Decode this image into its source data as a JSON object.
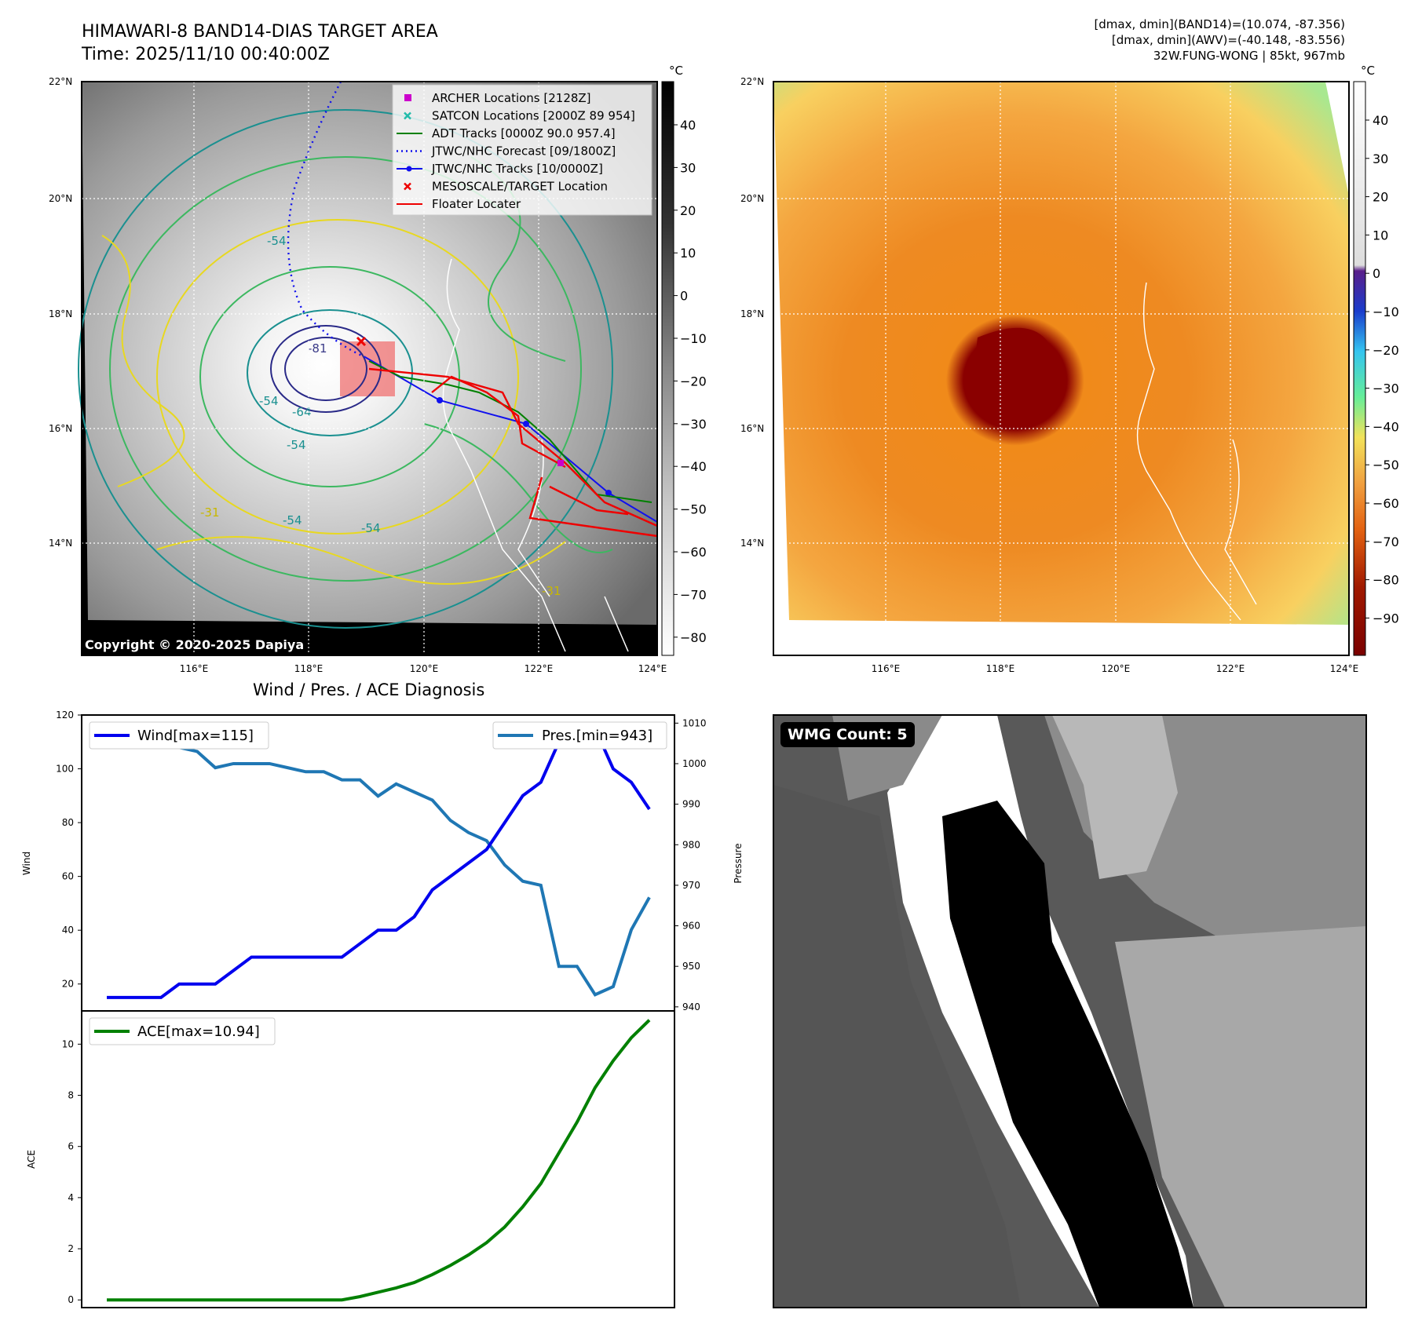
{
  "header": {
    "title_line1": "HIMAWARI-8 BAND14-DIAS TARGET AREA",
    "title_line2": "Time: 2025/11/10 00:40:00Z",
    "stats_line1": "[dmax, dmin](BAND14)=(10.074, -87.356)",
    "stats_line2": "[dmax, dmin](AWV)=(-40.148, -83.556)",
    "stats_line3": "32W.FUNG-WONG | 85kt, 967mb"
  },
  "map_left": {
    "lat_labels": [
      "22°N",
      "20°N",
      "18°N",
      "16°N",
      "14°N"
    ],
    "lon_labels": [
      "116°E",
      "118°E",
      "120°E",
      "122°E",
      "124°E"
    ],
    "colorbar_unit": "°C",
    "colorbar_ticks": [
      "40",
      "30",
      "20",
      "10",
      "0",
      "−10",
      "−20",
      "−30",
      "−40",
      "−50",
      "−60",
      "−70",
      "−80"
    ],
    "copyright": "Copyright © 2020-2025 Dapiya",
    "contour_labels": [
      "-54",
      "-54",
      "-81",
      "-64",
      "-54",
      "-31",
      "-31",
      "-54",
      "-54"
    ],
    "legend": [
      {
        "label": "ARCHER Locations [2128Z]",
        "color": "#cc00cc",
        "marker": "square"
      },
      {
        "label": "SATCON Locations [2000Z 89 954]",
        "color": "#22bbaa",
        "marker": "x"
      },
      {
        "label": "ADT Tracks [0000Z 90.0 957.4]",
        "color": "#008000",
        "marker": "line"
      },
      {
        "label": "JTWC/NHC Forecast [09/1800Z]",
        "color": "#1010ee",
        "marker": "dotted"
      },
      {
        "label": "JTWC/NHC Tracks [10/0000Z]",
        "color": "#1010ee",
        "marker": "line-dot"
      },
      {
        "label": "MESOSCALE/TARGET Location",
        "color": "#ee0000",
        "marker": "x"
      },
      {
        "label": "Floater Locater",
        "color": "#ee0000",
        "marker": "line"
      }
    ]
  },
  "map_right": {
    "lat_labels": [
      "22°N",
      "20°N",
      "18°N",
      "16°N",
      "14°N"
    ],
    "lon_labels": [
      "116°E",
      "118°E",
      "120°E",
      "122°E",
      "124°E"
    ],
    "colorbar_unit": "°C",
    "colorbar_ticks": [
      "40",
      "30",
      "20",
      "10",
      "0",
      "−10",
      "−20",
      "−30",
      "−40",
      "−50",
      "−60",
      "−70",
      "−80",
      "−90"
    ]
  },
  "wmg": {
    "label": "WMG Count: 5"
  },
  "colors": {
    "wind": "#0000ee",
    "pressure": "#1f77b4",
    "ace": "#008000"
  },
  "chart_data": [
    {
      "type": "line",
      "title": "Wind / Pres. / ACE Diagnosis",
      "ylabel": "Wind",
      "y2label": "Pressure",
      "ylim": [
        10,
        120
      ],
      "y2lim": [
        939,
        1012
      ],
      "yticks": [
        20,
        40,
        60,
        80,
        100,
        120
      ],
      "y2ticks": [
        940,
        950,
        960,
        970,
        980,
        990,
        1000,
        1010
      ],
      "x": [
        0,
        1,
        2,
        3,
        4,
        5,
        6,
        7,
        8,
        9,
        10,
        11,
        12,
        13,
        14,
        15,
        16,
        17,
        18,
        19,
        20,
        21,
        22,
        23,
        24,
        25,
        26,
        27,
        28,
        29,
        30
      ],
      "series": [
        {
          "name": "Wind[max=115]",
          "axis": "left",
          "values": [
            15,
            15,
            15,
            15,
            20,
            20,
            20,
            25,
            30,
            30,
            30,
            30,
            30,
            30,
            35,
            40,
            40,
            45,
            55,
            60,
            65,
            70,
            80,
            90,
            95,
            110,
            110,
            115,
            100,
            95,
            85
          ]
        },
        {
          "name": "Pres.[min=943]",
          "axis": "right",
          "values": [
            1008,
            1005,
            1005,
            1005,
            1004,
            1003,
            999,
            1000,
            1000,
            1000,
            999,
            998,
            998,
            996,
            996,
            992,
            995,
            993,
            991,
            986,
            983,
            981,
            975,
            971,
            970,
            950,
            950,
            943,
            945,
            959,
            967
          ]
        }
      ]
    },
    {
      "type": "line",
      "ylabel": "ACE",
      "ylim": [
        -0.3,
        11.3
      ],
      "yticks": [
        0,
        2,
        4,
        6,
        8,
        10
      ],
      "x": [
        0,
        1,
        2,
        3,
        4,
        5,
        6,
        7,
        8,
        9,
        10,
        11,
        12,
        13,
        14,
        15,
        16,
        17,
        18,
        19,
        20,
        21,
        22,
        23,
        24,
        25,
        26,
        27,
        28,
        29,
        30
      ],
      "series": [
        {
          "name": "ACE[max=10.94]",
          "values": [
            0,
            0,
            0,
            0,
            0,
            0,
            0,
            0,
            0,
            0,
            0,
            0,
            0,
            0,
            0.13,
            0.3,
            0.47,
            0.68,
            0.99,
            1.35,
            1.76,
            2.24,
            2.85,
            3.64,
            4.55,
            5.75,
            6.95,
            8.3,
            9.35,
            10.25,
            10.94
          ]
        }
      ]
    }
  ]
}
